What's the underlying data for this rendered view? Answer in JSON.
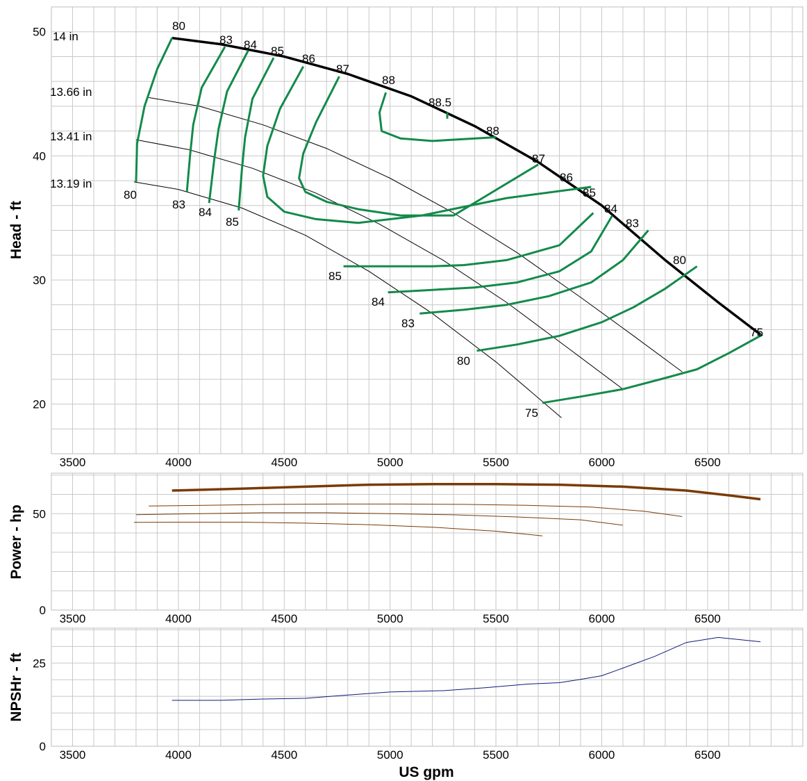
{
  "chart_data": [
    {
      "type": "line",
      "name": "head",
      "ylabel": "Head - ft",
      "xlim": [
        3400,
        6950
      ],
      "ylim": [
        16,
        52
      ],
      "xticks": [
        3500,
        4000,
        4500,
        5000,
        5500,
        6000,
        6500
      ],
      "yticks": [
        20,
        30,
        40,
        50
      ],
      "grid": true,
      "impellers": [
        {
          "label": "14 in",
          "x": [
            3970,
            4200,
            4500,
            4800,
            5100,
            5400,
            5700,
            6000,
            6300,
            6550,
            6750
          ],
          "y": [
            49.5,
            49.0,
            48.0,
            46.6,
            44.8,
            42.4,
            39.5,
            36.0,
            31.6,
            28.2,
            25.6
          ]
        },
        {
          "label": "13.66 in",
          "x": [
            3860,
            4100,
            4400,
            4700,
            5000,
            5300,
            5600,
            5900,
            6150,
            6380
          ],
          "y": [
            44.7,
            44.0,
            42.5,
            40.6,
            38.2,
            35.4,
            32.2,
            28.6,
            25.5,
            22.6
          ]
        },
        {
          "label": "13.41 in",
          "x": [
            3800,
            4050,
            4350,
            4650,
            4950,
            5250,
            5550,
            5850,
            6100
          ],
          "y": [
            41.3,
            40.5,
            39.0,
            37.0,
            34.5,
            31.6,
            28.2,
            24.4,
            21.2
          ]
        },
        {
          "label": "13.19 in",
          "x": [
            3790,
            4000,
            4300,
            4600,
            4900,
            5200,
            5500,
            5810
          ],
          "y": [
            37.9,
            37.3,
            35.8,
            33.6,
            30.7,
            27.3,
            23.4,
            18.9
          ]
        }
      ],
      "efficiency_contours": [
        {
          "label": "80",
          "x": [
            3970,
            3900,
            3840,
            3805,
            3800
          ],
          "y": [
            49.5,
            47.0,
            44.0,
            41.0,
            37.9
          ]
        },
        {
          "label": "83",
          "x": [
            4220,
            4110,
            4070,
            4055,
            4040
          ],
          "y": [
            48.8,
            45.5,
            42.5,
            40.0,
            37.1
          ]
        },
        {
          "label": "84",
          "x": [
            4330,
            4230,
            4190,
            4170,
            4145
          ],
          "y": [
            48.5,
            45.2,
            42.2,
            39.8,
            36.2
          ]
        },
        {
          "label": "85",
          "x": [
            4450,
            4350,
            4315,
            4300,
            4285
          ],
          "y": [
            47.9,
            44.6,
            41.5,
            38.9,
            35.6
          ]
        },
        {
          "label": "86",
          "x": [
            4590,
            4480,
            4420,
            4400,
            4420,
            4500,
            4650,
            4850,
            5150,
            5550,
            5950
          ],
          "y": [
            47.2,
            43.8,
            40.8,
            38.4,
            36.7,
            35.5,
            34.9,
            34.6,
            35.2,
            36.6,
            37.5
          ]
        },
        {
          "label": "87",
          "x": [
            4760,
            4650,
            4590,
            4570,
            4600,
            4700,
            4850,
            5050,
            5300,
            5700
          ],
          "y": [
            46.4,
            42.7,
            40.2,
            38.2,
            37.1,
            36.3,
            35.7,
            35.2,
            35.2,
            39.3
          ]
        },
        {
          "label": "88",
          "x": [
            4980,
            4950,
            4960,
            5050,
            5200,
            5500
          ],
          "y": [
            45.1,
            43.5,
            42.0,
            41.4,
            41.2,
            41.5
          ]
        },
        {
          "label": "88.5",
          "x": [
            5270,
            5270
          ],
          "y": [
            43.5,
            43.0
          ]
        },
        {
          "label": "85",
          "x": [
            4780,
            5000,
            5200,
            5350,
            5550,
            5800,
            5960
          ],
          "y": [
            31.1,
            31.1,
            31.1,
            31.2,
            31.6,
            32.8,
            35.4
          ]
        },
        {
          "label": "84",
          "x": [
            4990,
            5200,
            5400,
            5600,
            5800,
            5950,
            6050
          ],
          "y": [
            29.0,
            29.2,
            29.4,
            29.8,
            30.7,
            32.3,
            35.2
          ]
        },
        {
          "label": "83",
          "x": [
            5140,
            5350,
            5550,
            5750,
            5950,
            6100,
            6220
          ],
          "y": [
            27.3,
            27.6,
            28.0,
            28.7,
            29.8,
            31.6,
            34.0
          ]
        },
        {
          "label": "80",
          "x": [
            5410,
            5600,
            5800,
            6000,
            6150,
            6300,
            6450
          ],
          "y": [
            24.3,
            24.8,
            25.5,
            26.6,
            27.8,
            29.3,
            31.1
          ]
        },
        {
          "label": "75",
          "x": [
            5720,
            5900,
            6100,
            6300,
            6450,
            6600,
            6760
          ],
          "y": [
            20.1,
            20.6,
            21.2,
            22.1,
            22.8,
            24.1,
            25.6
          ]
        }
      ],
      "curve_labels": [
        "80",
        "83",
        "84",
        "85",
        "86",
        "87",
        "88",
        "88.5",
        "88",
        "87",
        "86",
        "85",
        "84",
        "83",
        "80",
        "75",
        "80",
        "83",
        "84",
        "85",
        "85",
        "84",
        "83",
        "80",
        "75"
      ]
    },
    {
      "type": "line",
      "name": "power",
      "ylabel": "Power - hp",
      "xlim": [
        3400,
        6950
      ],
      "ylim": [
        0,
        71
      ],
      "xticks": [
        3500,
        4000,
        4500,
        5000,
        5500,
        6000,
        6500
      ],
      "yticks": [
        0,
        50
      ],
      "grid": true,
      "series": [
        {
          "x": [
            3970,
            4300,
            4600,
            4900,
            5200,
            5500,
            5800,
            6100,
            6400,
            6600,
            6750
          ],
          "y": [
            62.0,
            63.0,
            64.0,
            65.0,
            65.3,
            65.3,
            65.0,
            64.0,
            62.0,
            59.5,
            57.5
          ]
        },
        {
          "x": [
            3860,
            4150,
            4450,
            4750,
            5050,
            5350,
            5650,
            5950,
            6200,
            6380
          ],
          "y": [
            54.0,
            54.4,
            54.8,
            55.0,
            55.0,
            54.8,
            54.3,
            53.4,
            51.3,
            48.5
          ]
        },
        {
          "x": [
            3800,
            4100,
            4400,
            4700,
            5000,
            5300,
            5600,
            5900,
            6100
          ],
          "y": [
            49.5,
            50.0,
            50.5,
            50.5,
            50.0,
            49.4,
            48.3,
            46.8,
            44.0
          ]
        },
        {
          "x": [
            3790,
            4000,
            4300,
            4600,
            4900,
            5200,
            5500,
            5720
          ],
          "y": [
            45.5,
            45.6,
            45.6,
            45.1,
            44.3,
            43.0,
            40.9,
            38.5
          ]
        }
      ]
    },
    {
      "type": "line",
      "name": "npshr",
      "ylabel": "NPSHr - ft",
      "xlim": [
        3400,
        6950
      ],
      "ylim": [
        0,
        35.5
      ],
      "xticks": [
        3500,
        4000,
        4500,
        5000,
        5500,
        6000,
        6500
      ],
      "yticks": [
        0,
        25
      ],
      "xlabel": "US gpm",
      "grid": true,
      "series": [
        {
          "x": [
            3970,
            4200,
            4400,
            4600,
            4800,
            5000,
            5250,
            5450,
            5650,
            5800,
            5900,
            6000,
            6100,
            6250,
            6400,
            6550,
            6750
          ],
          "y": [
            13.8,
            13.8,
            14.2,
            14.4,
            15.4,
            16.3,
            16.7,
            17.6,
            18.7,
            19.1,
            20.1,
            21.2,
            23.5,
            27.0,
            31.2,
            32.7,
            31.4
          ]
        }
      ]
    }
  ]
}
